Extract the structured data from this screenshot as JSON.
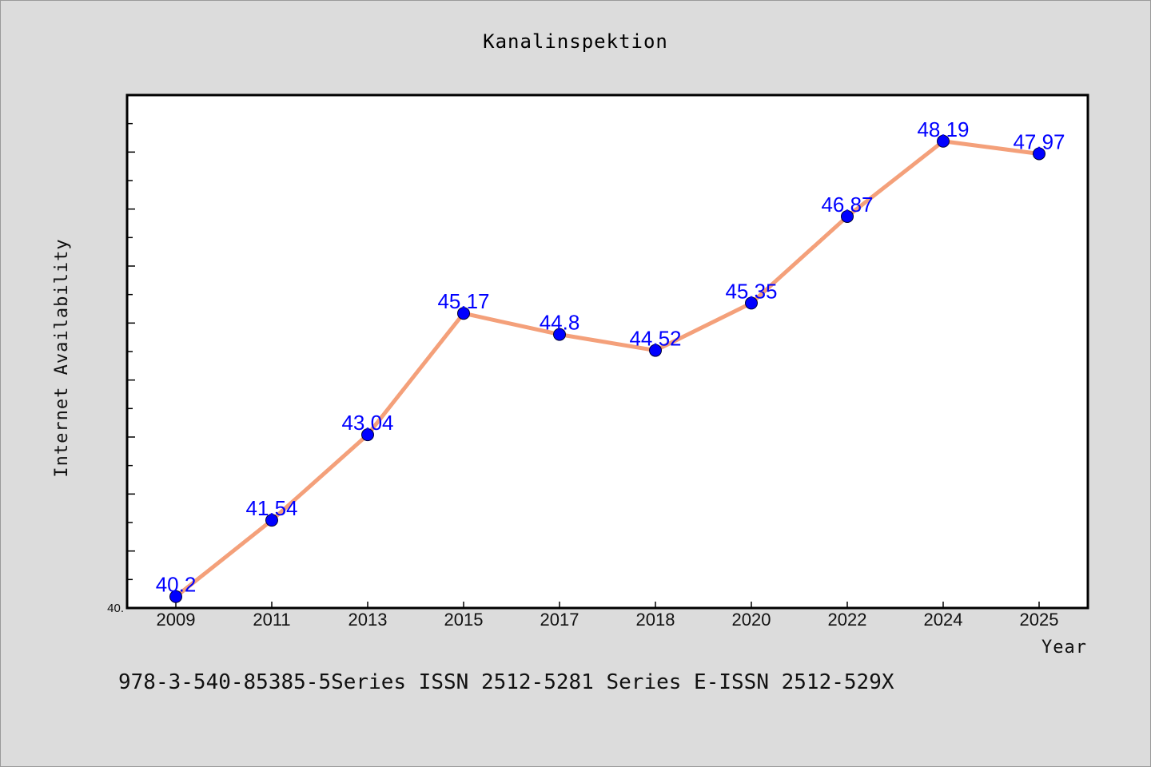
{
  "chart_data": {
    "type": "line",
    "title": "Kanalinspektion",
    "xlabel": "Year",
    "ylabel": "Internet Availability",
    "categories": [
      "2009",
      "2011",
      "2013",
      "2015",
      "2017",
      "2018",
      "2020",
      "2022",
      "2024",
      "2025"
    ],
    "series": [
      {
        "values": [
          40.2,
          41.54,
          43.04,
          45.17,
          44.8,
          44.52,
          45.35,
          46.87,
          48.19,
          47.97
        ],
        "labels": [
          "40.2",
          "41.54",
          "43.04",
          "45.17",
          "44.8",
          "44.52",
          "45.35",
          "46.87",
          "48.19",
          "47.97"
        ],
        "line_color": "#f4a07a",
        "marker_color": "#0000ff"
      }
    ],
    "ylim": [
      40.0,
      49.0
    ],
    "y_tick_labels": [
      "40."
    ],
    "grid": false,
    "legend": "none"
  },
  "footer": {
    "text": "978-3-540-85385-5Series ISSN 2512-5281 Series E-ISSN 2512-529X"
  }
}
